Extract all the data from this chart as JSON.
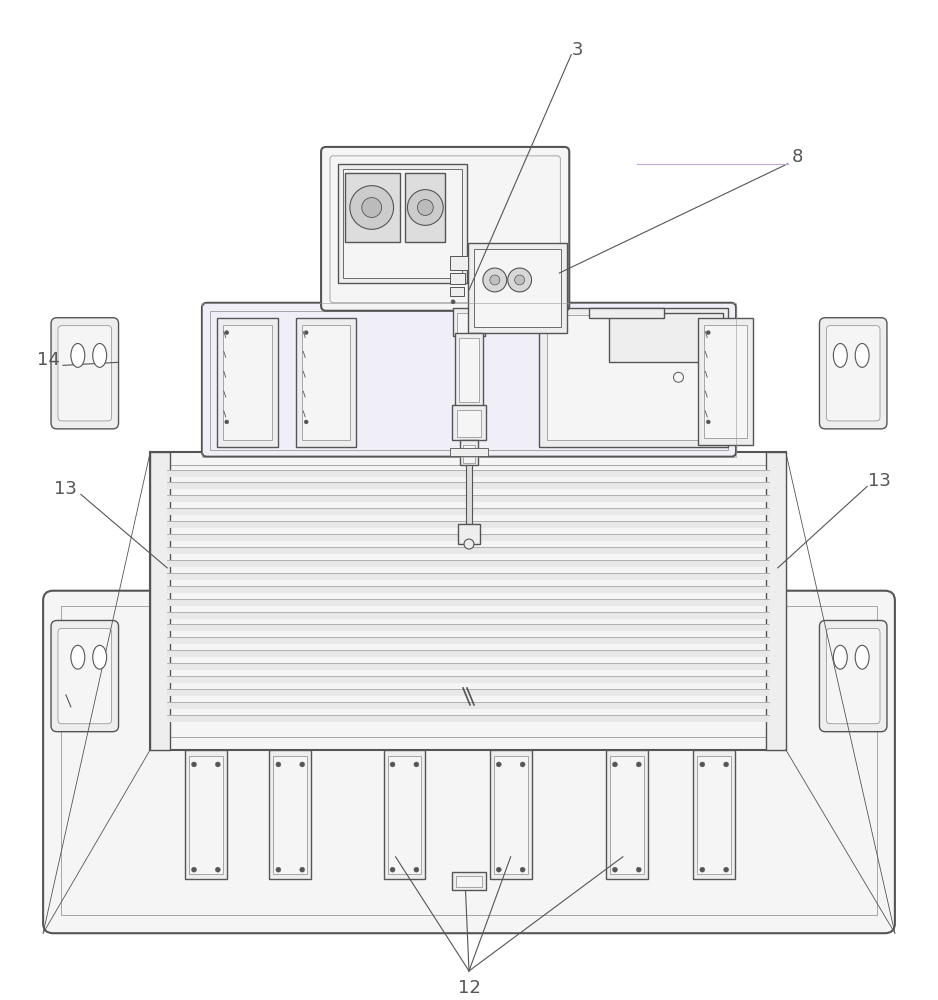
{
  "bg_color": "#ffffff",
  "lc": "#555555",
  "lc_light": "#999999",
  "lc_purple": "#c8a8d8",
  "fc_white": "#ffffff",
  "fc_light": "#f5f5f5",
  "fc_mid": "#eeeeee",
  "fc_dark": "#dddddd",
  "fc_purple_light": "#f0eff8",
  "label_fs": 13,
  "lw_thick": 1.5,
  "lw_main": 1.0,
  "lw_thin": 0.6
}
